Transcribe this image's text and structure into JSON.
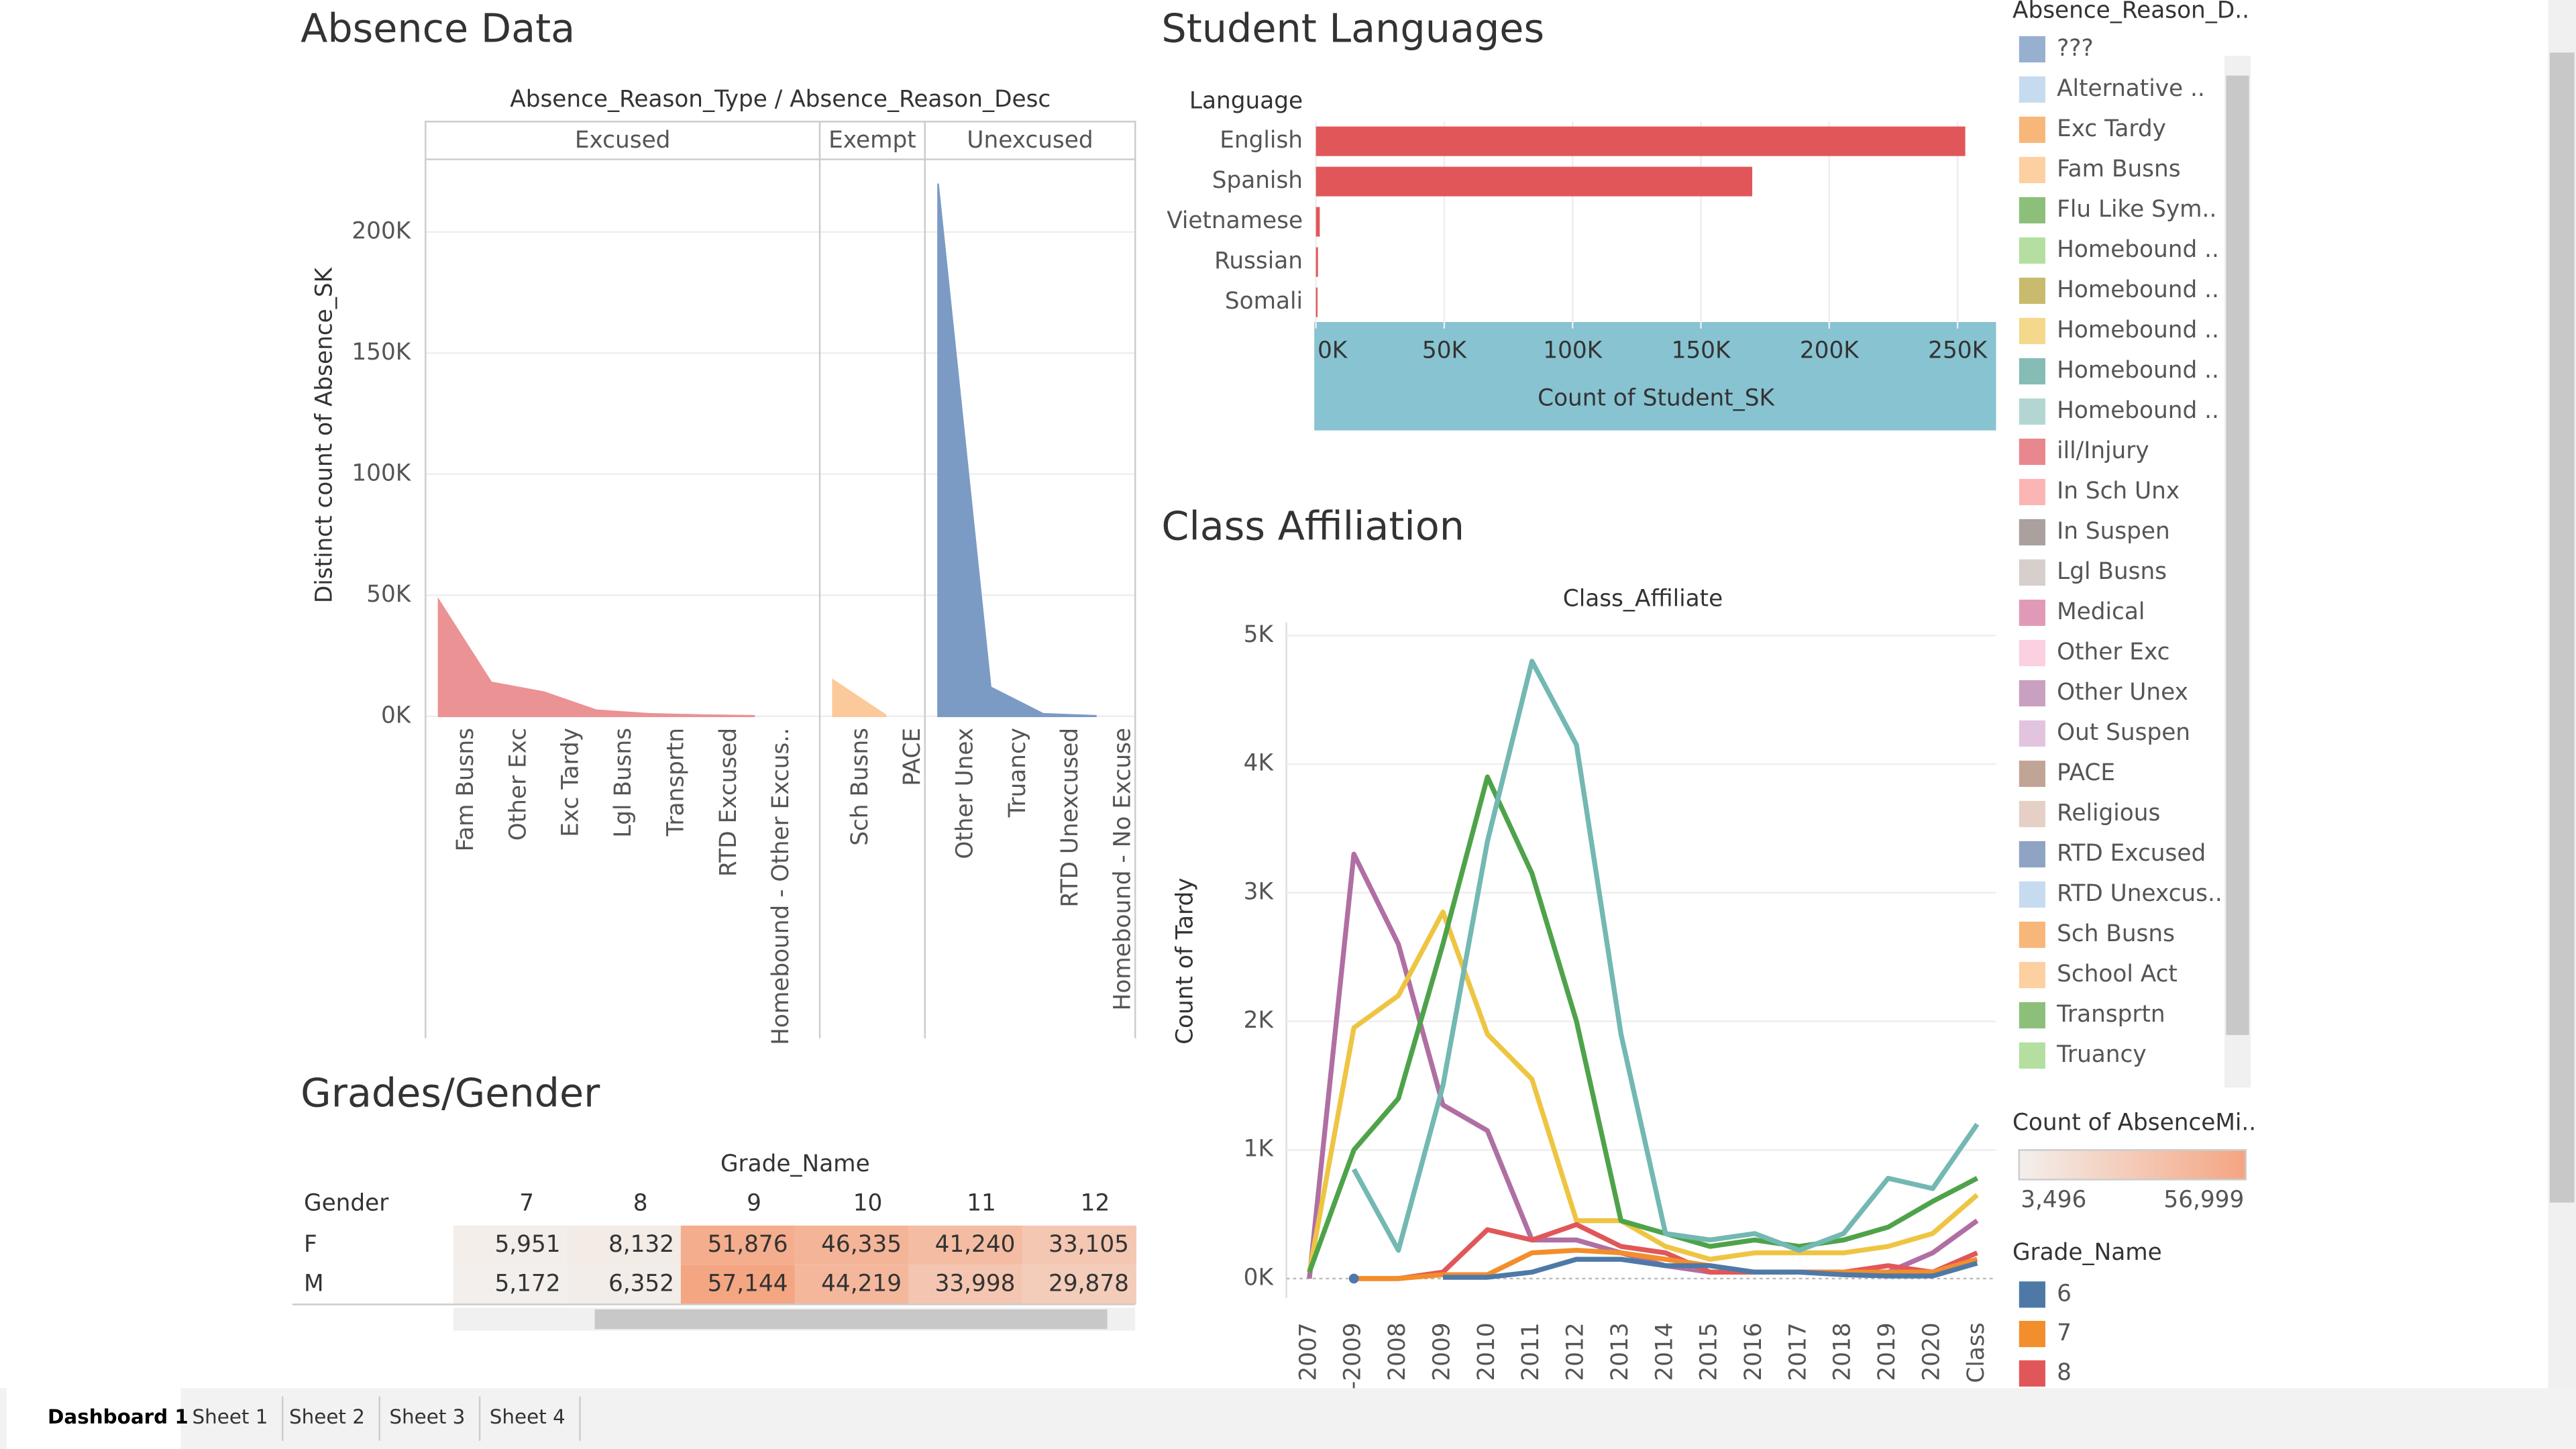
{
  "absence": {
    "type": "area",
    "title": "Absence Data",
    "header": "Absence_Reason_Type / Absence_Reason_Desc",
    "y_label": "Distinct count of Absence_SK",
    "ylim": [
      0,
      230000
    ],
    "yticks": [
      {
        "value": 0,
        "label": "0K"
      },
      {
        "value": 50000,
        "label": "50K"
      },
      {
        "value": 100000,
        "label": "100K"
      },
      {
        "value": 150000,
        "label": "150K"
      },
      {
        "value": 200000,
        "label": "200K"
      }
    ],
    "groups": [
      {
        "name": "Excused",
        "color": "#eb9294",
        "categories": [
          "Fam Busns",
          "Other Exc",
          "Exc Tardy",
          "Lgl Busns",
          "Transprtn",
          "RTD Excused",
          "Homebound - Other Excus.."
        ],
        "values": [
          48000,
          14000,
          10000,
          2500,
          1000,
          500,
          200
        ]
      },
      {
        "name": "Exempt",
        "color": "#fbc99a",
        "categories": [
          "Sch Busns",
          "PACE"
        ],
        "values": [
          15000,
          500
        ]
      },
      {
        "name": "Unexcused",
        "color": "#7b9bc4",
        "categories": [
          "Other Unex",
          "Truancy",
          "RTD Unexcused",
          "Homebound - No Excuse"
        ],
        "values": [
          220000,
          12000,
          1000,
          200
        ]
      }
    ]
  },
  "languages": {
    "type": "bar",
    "title": "Student Languages",
    "header": "Language",
    "x_label": "Count of Student_SK",
    "color": "#e15759",
    "categories": [
      "English",
      "Spanish",
      "Vietnamese",
      "Russian",
      "Somali"
    ],
    "values": [
      253000,
      170000,
      1500,
      800,
      600
    ],
    "xlim": [
      0,
      265000
    ],
    "xticks": [
      {
        "value": 0,
        "label": "0K"
      },
      {
        "value": 50000,
        "label": "50K"
      },
      {
        "value": 100000,
        "label": "100K"
      },
      {
        "value": 150000,
        "label": "150K"
      },
      {
        "value": 200000,
        "label": "200K"
      },
      {
        "value": 250000,
        "label": "250K"
      }
    ]
  },
  "class_affiliation": {
    "type": "line",
    "title": "Class Affiliation",
    "header": "Class_Affiliate",
    "y_label": "Count of Tardy",
    "categories": [
      "2007",
      "-2009",
      "2008",
      "2009",
      "2010",
      "2011",
      "2012",
      "2013",
      "2014",
      "2015",
      "2016",
      "2017",
      "2018",
      "2019",
      "2020",
      "Class"
    ],
    "ylim": [
      -150,
      5100
    ],
    "yticks": [
      {
        "value": 0,
        "label": "0K"
      },
      {
        "value": 1000,
        "label": "1K"
      },
      {
        "value": 2000,
        "label": "2K"
      },
      {
        "value": 3000,
        "label": "3K"
      },
      {
        "value": 4000,
        "label": "4K"
      },
      {
        "value": 5000,
        "label": "5K"
      }
    ],
    "series": [
      {
        "color": "#b06fa3",
        "values": [
          0,
          3300,
          2600,
          1350,
          1150,
          300,
          300,
          200,
          100,
          50,
          50,
          50,
          50,
          50,
          200,
          450
        ]
      },
      {
        "color": "#eec543",
        "values": [
          50,
          1950,
          2200,
          2850,
          1900,
          1550,
          450,
          450,
          250,
          150,
          200,
          200,
          200,
          250,
          350,
          650
        ]
      },
      {
        "color": "#4ea34a",
        "values": [
          50,
          1000,
          1400,
          2600,
          3900,
          3150,
          2000,
          450,
          350,
          250,
          300,
          250,
          300,
          400,
          600,
          780
        ]
      },
      {
        "color": "#73b8b2",
        "values": [
          null,
          850,
          220,
          1500,
          3400,
          4800,
          4150,
          1900,
          350,
          300,
          350,
          220,
          350,
          780,
          700,
          1200
        ]
      },
      {
        "name": "8",
        "color": "#e15759",
        "values": [
          null,
          0,
          0,
          50,
          380,
          300,
          420,
          250,
          200,
          50,
          50,
          50,
          50,
          100,
          50,
          200
        ]
      },
      {
        "name": "7",
        "color": "#f28e2b",
        "values": [
          null,
          0,
          0,
          30,
          30,
          200,
          220,
          200,
          150,
          100,
          50,
          50,
          50,
          50,
          50,
          150
        ]
      },
      {
        "name": "6",
        "color": "#4e79a7",
        "values": [
          null,
          0,
          null,
          10,
          10,
          50,
          150,
          150,
          100,
          100,
          50,
          50,
          30,
          20,
          20,
          120
        ]
      }
    ]
  },
  "grades_gender": {
    "title": "Grades/Gender",
    "column_header": "Grade_Name",
    "row_header": "Gender",
    "columns": [
      "7",
      "8",
      "9",
      "10",
      "11",
      "12"
    ],
    "rows": [
      {
        "label": "F",
        "values": [
          5951,
          8132,
          51876,
          46335,
          41240,
          33105
        ],
        "value_labels": [
          "5,951",
          "8,132",
          "51,876",
          "46,335",
          "41,240",
          "33,105"
        ]
      },
      {
        "label": "M",
        "values": [
          5172,
          6352,
          57144,
          44219,
          33998,
          29878
        ],
        "value_labels": [
          "5,172",
          "6,352",
          "57,144",
          "44,219",
          "33,998",
          "29,878"
        ]
      }
    ]
  },
  "legend_reasons": {
    "title": "Absence_Reason_D..",
    "items": [
      {
        "label": "???",
        "color": "#98b0cf"
      },
      {
        "label": "Alternative ..",
        "color": "#c6dbef"
      },
      {
        "label": "Exc Tardy",
        "color": "#f8b77a"
      },
      {
        "label": "Fam Busns",
        "color": "#fdd0a2"
      },
      {
        "label": "Flu Like Sym..",
        "color": "#8cc07a"
      },
      {
        "label": "Homebound ..",
        "color": "#b5dfa0"
      },
      {
        "label": "Homebound ..",
        "color": "#c9bb6e"
      },
      {
        "label": "Homebound ..",
        "color": "#f4d98c"
      },
      {
        "label": "Homebound ..",
        "color": "#86bcb6"
      },
      {
        "label": "Homebound ..",
        "color": "#b3d6d3"
      },
      {
        "label": "ill/Injury",
        "color": "#e8878d"
      },
      {
        "label": "In Sch Unx",
        "color": "#fbb5b5"
      },
      {
        "label": "In Suspen",
        "color": "#aaa09e"
      },
      {
        "label": "Lgl Busns",
        "color": "#d6cfcb"
      },
      {
        "label": "Medical",
        "color": "#e09ab8"
      },
      {
        "label": "Other Exc",
        "color": "#fbd0e0"
      },
      {
        "label": "Other Unex",
        "color": "#c9a0c0"
      },
      {
        "label": "Out Suspen",
        "color": "#e3c4de"
      },
      {
        "label": "PACE",
        "color": "#c0a597"
      },
      {
        "label": "Religious",
        "color": "#e6d0c6"
      },
      {
        "label": "RTD Excused",
        "color": "#8ea4c2"
      },
      {
        "label": "RTD Unexcus..",
        "color": "#c6dbef"
      },
      {
        "label": "Sch Busns",
        "color": "#f8b77a"
      },
      {
        "label": "School Act",
        "color": "#fdd0a2"
      },
      {
        "label": "Transprtn",
        "color": "#8cc07a"
      },
      {
        "label": "Truancy",
        "color": "#b5dfa0"
      }
    ]
  },
  "legend_count": {
    "title": "Count of AbsenceMi..",
    "min_label": "3,496",
    "max_label": "56,999",
    "min_color": "#f3efec",
    "max_color": "#f4a582"
  },
  "legend_grade": {
    "title": "Grade_Name",
    "items": [
      {
        "label": "6",
        "color": "#4e79a7"
      },
      {
        "label": "7",
        "color": "#f28e2b"
      },
      {
        "label": "8",
        "color": "#e15759"
      }
    ]
  },
  "tabs": [
    "Dashboard 1",
    "Sheet 1",
    "Sheet 2",
    "Sheet 3",
    "Sheet 4"
  ]
}
